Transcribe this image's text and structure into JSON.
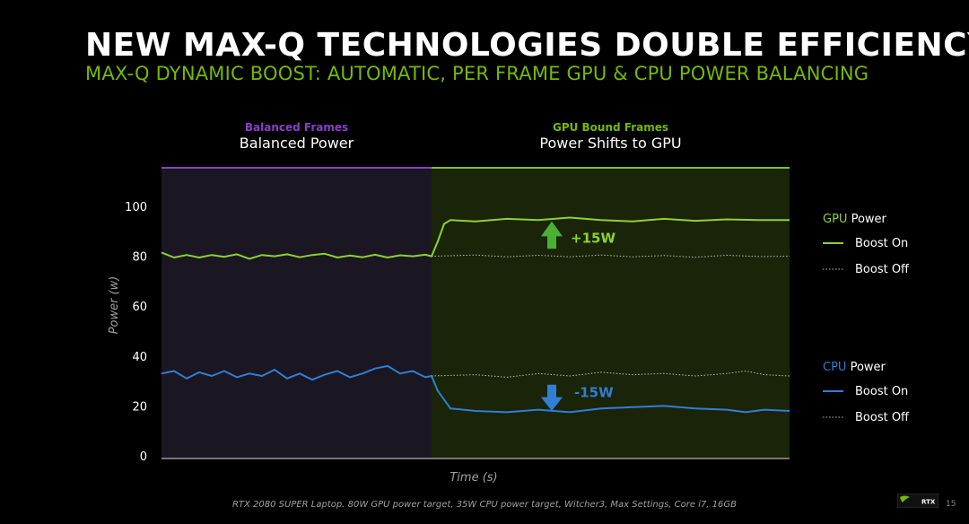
{
  "title": "NEW MAX-Q TECHNOLOGIES DOUBLE EFFICIENCY",
  "subtitle": "MAX-Q DYNAMIC BOOST: AUTOMATIC, PER FRAME GPU & CPU POWER BALANCING",
  "footnote": "RTX 2080 SUPER Laptop. 80W GPU power target, 35W CPU power target, Witcher3, Max Settings, Core i7, 16GB",
  "page_number": "15",
  "logo_text": "RTX",
  "colors": {
    "gpu": "#8ed132",
    "cpu": "#2f7fd6",
    "balanced_region": "#1a1622",
    "gpu_region": "#1a2408",
    "balanced_bar": "#8a3fc6",
    "gpu_bar": "#7fc21e"
  },
  "chart_data": {
    "type": "line",
    "ylabel": "Power (w)",
    "xlabel": "Time (s)",
    "ylim": [
      0,
      100
    ],
    "yticks": [
      0,
      20,
      40,
      60,
      80,
      100
    ],
    "regions": [
      {
        "heading": "Balanced Frames",
        "label": "Balanced Power",
        "x_range": [
          0,
          0.43
        ]
      },
      {
        "heading": "GPU Bound Frames",
        "label": "Power Shifts to GPU",
        "x_range": [
          0.43,
          1
        ]
      }
    ],
    "annotations": [
      {
        "text": "+15W",
        "direction": "up",
        "series": "gpu"
      },
      {
        "text": "-15W",
        "direction": "down",
        "series": "cpu"
      }
    ],
    "legend": [
      {
        "group_prefix": "GPU",
        "group_suffix": "Power",
        "items": [
          {
            "style": "solid",
            "label": "Boost On"
          },
          {
            "style": "dotted",
            "label": "Boost Off"
          }
        ]
      },
      {
        "group_prefix": "CPU",
        "group_suffix": "Power",
        "items": [
          {
            "style": "solid",
            "label": "Boost On"
          },
          {
            "style": "dotted",
            "label": "Boost Off"
          }
        ]
      }
    ],
    "series": [
      {
        "key": "gpu_on",
        "points": [
          [
            0,
            81.5
          ],
          [
            0.02,
            79.5
          ],
          [
            0.04,
            80.5
          ],
          [
            0.06,
            79.5
          ],
          [
            0.08,
            80.5
          ],
          [
            0.1,
            79.8
          ],
          [
            0.12,
            80.8
          ],
          [
            0.14,
            79
          ],
          [
            0.16,
            80.5
          ],
          [
            0.18,
            80
          ],
          [
            0.2,
            80.8
          ],
          [
            0.22,
            79.6
          ],
          [
            0.24,
            80.5
          ],
          [
            0.26,
            81
          ],
          [
            0.28,
            79.5
          ],
          [
            0.3,
            80.3
          ],
          [
            0.32,
            79.6
          ],
          [
            0.34,
            80.6
          ],
          [
            0.36,
            79.5
          ],
          [
            0.38,
            80.4
          ],
          [
            0.4,
            80
          ],
          [
            0.42,
            80.6
          ],
          [
            0.43,
            80
          ],
          [
            0.44,
            86
          ],
          [
            0.45,
            93
          ],
          [
            0.46,
            94.5
          ],
          [
            0.5,
            94
          ],
          [
            0.55,
            95
          ],
          [
            0.6,
            94.5
          ],
          [
            0.65,
            95.5
          ],
          [
            0.7,
            94.5
          ],
          [
            0.75,
            94
          ],
          [
            0.8,
            95
          ],
          [
            0.85,
            94.2
          ],
          [
            0.9,
            94.8
          ],
          [
            0.95,
            94.5
          ],
          [
            1,
            94.5
          ]
        ]
      },
      {
        "key": "gpu_off",
        "points": [
          [
            0.43,
            80
          ],
          [
            0.5,
            80.5
          ],
          [
            0.55,
            79.8
          ],
          [
            0.6,
            80.4
          ],
          [
            0.65,
            79.8
          ],
          [
            0.7,
            80.5
          ],
          [
            0.75,
            79.8
          ],
          [
            0.8,
            80.3
          ],
          [
            0.85,
            79.6
          ],
          [
            0.9,
            80.4
          ],
          [
            0.95,
            79.9
          ],
          [
            1,
            80
          ]
        ]
      },
      {
        "key": "cpu_on",
        "points": [
          [
            0,
            33
          ],
          [
            0.02,
            34
          ],
          [
            0.04,
            31
          ],
          [
            0.06,
            33.5
          ],
          [
            0.08,
            32
          ],
          [
            0.1,
            34
          ],
          [
            0.12,
            31.5
          ],
          [
            0.14,
            33
          ],
          [
            0.16,
            32
          ],
          [
            0.18,
            34.5
          ],
          [
            0.2,
            31
          ],
          [
            0.22,
            33
          ],
          [
            0.24,
            30.5
          ],
          [
            0.26,
            32.5
          ],
          [
            0.28,
            34
          ],
          [
            0.3,
            31.5
          ],
          [
            0.32,
            33
          ],
          [
            0.34,
            35
          ],
          [
            0.36,
            36
          ],
          [
            0.38,
            33
          ],
          [
            0.4,
            34
          ],
          [
            0.42,
            31.5
          ],
          [
            0.43,
            32
          ],
          [
            0.44,
            26
          ],
          [
            0.46,
            19
          ],
          [
            0.5,
            18
          ],
          [
            0.55,
            17.5
          ],
          [
            0.6,
            18.5
          ],
          [
            0.65,
            17.5
          ],
          [
            0.7,
            19
          ],
          [
            0.75,
            19.5
          ],
          [
            0.8,
            20
          ],
          [
            0.85,
            19
          ],
          [
            0.9,
            18.5
          ],
          [
            0.93,
            17.5
          ],
          [
            0.96,
            18.5
          ],
          [
            1,
            18
          ]
        ]
      },
      {
        "key": "cpu_off",
        "points": [
          [
            0.43,
            32
          ],
          [
            0.5,
            32.5
          ],
          [
            0.55,
            31.5
          ],
          [
            0.6,
            33
          ],
          [
            0.65,
            32
          ],
          [
            0.7,
            33.5
          ],
          [
            0.75,
            32.5
          ],
          [
            0.8,
            33
          ],
          [
            0.85,
            32
          ],
          [
            0.9,
            33
          ],
          [
            0.93,
            34
          ],
          [
            0.96,
            32.5
          ],
          [
            1,
            32
          ]
        ]
      }
    ]
  }
}
